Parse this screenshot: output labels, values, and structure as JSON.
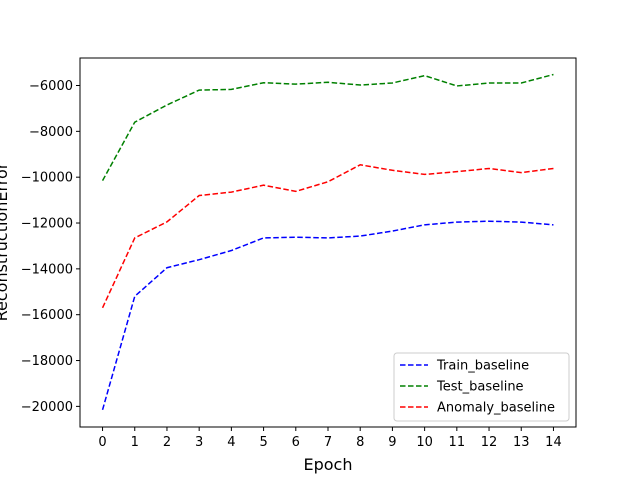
{
  "chart_data": {
    "type": "line",
    "title": "",
    "xlabel": "Epoch",
    "ylabel": "ReconstructionError",
    "x": [
      0,
      1,
      2,
      3,
      4,
      5,
      6,
      7,
      8,
      9,
      10,
      11,
      12,
      13,
      14
    ],
    "xticks": [
      "0",
      "1",
      "2",
      "3",
      "4",
      "5",
      "6",
      "7",
      "8",
      "9",
      "10",
      "11",
      "12",
      "13",
      "14"
    ],
    "xlim": [
      -0.7,
      14.7
    ],
    "ylim": [
      -20900,
      -4800
    ],
    "yticks": [
      -20000,
      -18000,
      -16000,
      -14000,
      -12000,
      -10000,
      -8000,
      -6000
    ],
    "ytick_labels": [
      "−20000",
      "−18000",
      "−16000",
      "−14000",
      "−12000",
      "−10000",
      "−8000",
      "−6000"
    ],
    "grid": false,
    "legend_position": "lower-right",
    "series": [
      {
        "name": "Train_baseline",
        "color": "#0000ff",
        "linestyle": "dashed",
        "values": [
          -20150,
          -15200,
          -13950,
          -13600,
          -13200,
          -12650,
          -12620,
          -12650,
          -12570,
          -12350,
          -12080,
          -11960,
          -11920,
          -11960,
          -12080
        ]
      },
      {
        "name": "Test_baseline",
        "color": "#008000",
        "linestyle": "dashed",
        "values": [
          -10150,
          -7600,
          -6850,
          -6200,
          -6170,
          -5880,
          -5940,
          -5860,
          -5980,
          -5890,
          -5570,
          -6020,
          -5890,
          -5890,
          -5520
        ]
      },
      {
        "name": "Anomaly_baseline",
        "color": "#ff0000",
        "linestyle": "dashed",
        "values": [
          -15700,
          -12650,
          -11950,
          -10800,
          -10650,
          -10350,
          -10620,
          -10200,
          -9460,
          -9700,
          -9880,
          -9760,
          -9620,
          -9800,
          -9620
        ]
      }
    ]
  }
}
